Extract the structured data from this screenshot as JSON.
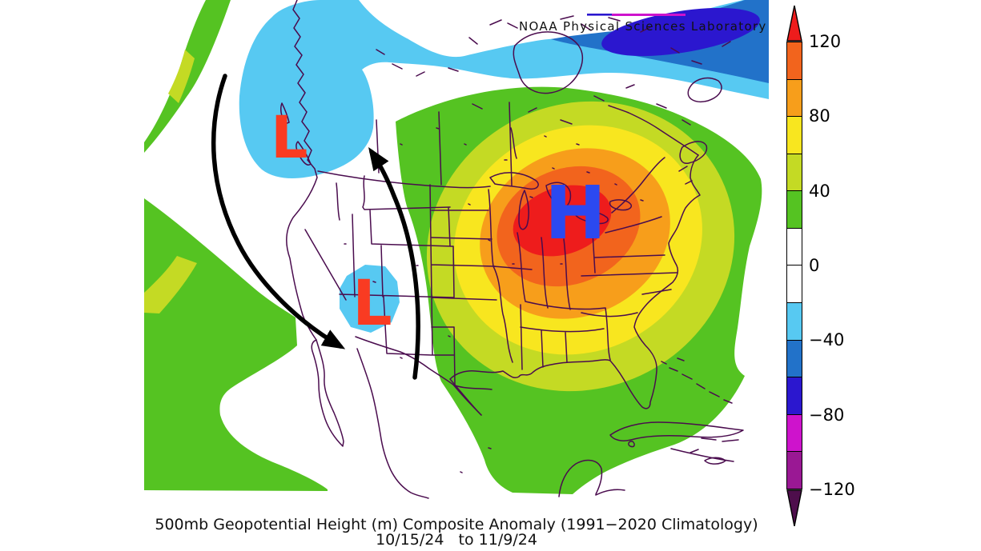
{
  "header": {
    "title": "NOAA Physical Sciences Laboratory"
  },
  "caption": {
    "line1": "500mb Geopotential Height (m) Composite Anomaly (1991−2020 Climatology)",
    "line2": "10/15/24   to 11/9/24"
  },
  "markers": {
    "low_nw": "L",
    "low_sw": "L",
    "high": "H"
  },
  "palette": {
    "red": "#EE1C1C",
    "vermilion": "#F2641D",
    "orange": "#F79E1B",
    "yellow": "#F8E61F",
    "yellow_green": "#C4DA24",
    "green": "#55C322",
    "white": "#FFFFFF",
    "cyan": "#57C9F2",
    "blue": "#2272C9",
    "indigo": "#2B17CF",
    "magenta": "#CE13CC",
    "purple": "#9A1894",
    "dark_purple": "#4E0E4C",
    "outline": "#4A0C4E",
    "arrow": "#000000",
    "low_label": "#F93B22",
    "high_label": "#2B49F0",
    "text": "#111111"
  },
  "colorbar": {
    "tick_labels": [
      "120",
      "80",
      "40",
      "0",
      "−40",
      "−80",
      "−120"
    ],
    "tick_values": [
      120,
      80,
      40,
      0,
      -40,
      -80,
      -120
    ],
    "segment_colors": [
      "#F2641D",
      "#F79E1B",
      "#F8E61F",
      "#C4DA24",
      "#55C322",
      "#FFFFFF",
      "#FFFFFF",
      "#57C9F2",
      "#2272C9",
      "#2B17CF",
      "#CE13CC",
      "#9A1894"
    ],
    "top_arrow_color": "#EE1C1C",
    "bottom_arrow_color": "#4E0E4C"
  }
}
